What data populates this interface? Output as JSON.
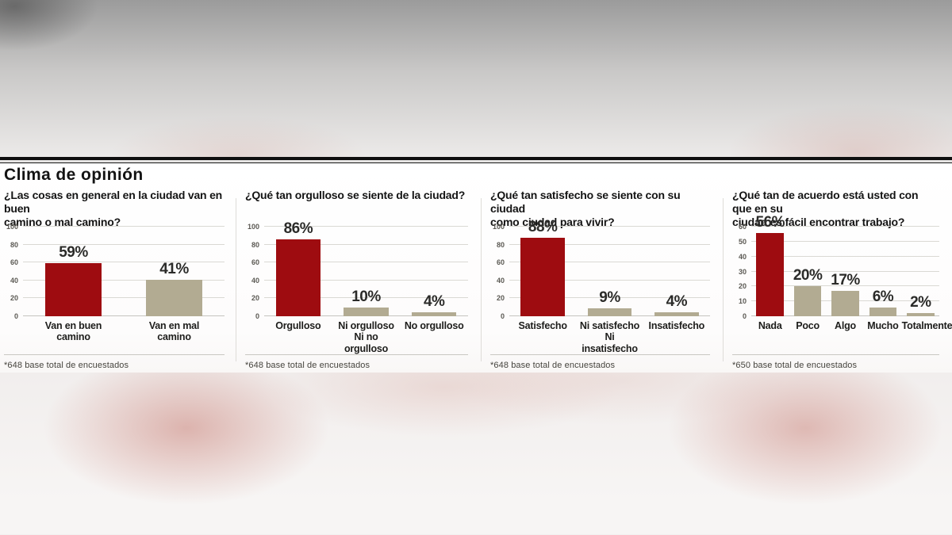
{
  "page": {
    "heading": "Clima de opinión"
  },
  "colors": {
    "accent_red": "#9e0c10",
    "neutral_tan": "#b2ab92",
    "rule_black": "#0f0f0f"
  },
  "chart_data": [
    {
      "type": "bar",
      "title": "¿Las cosas en general en la ciudad van en buen\ncamino o mal camino?",
      "categories": [
        "Van en buen\ncamino",
        "Van en mal\ncamino"
      ],
      "values": [
        59,
        41
      ],
      "value_labels": [
        "59%",
        "41%"
      ],
      "colors": [
        "#9e0c10",
        "#b2ab92"
      ],
      "ylim": [
        0,
        100
      ],
      "yticks": [
        0,
        20,
        40,
        60,
        80,
        100
      ],
      "grid": true,
      "legend": "none",
      "bar_width_pct": 56,
      "footnote": "*648 base total de encuestados"
    },
    {
      "type": "bar",
      "title": "¿Qué tan orgulloso se siente de la ciudad?",
      "categories": [
        "Orgulloso",
        "Ni orgulloso\nNi no orgulloso",
        "No orgulloso"
      ],
      "values": [
        86,
        10,
        4
      ],
      "value_labels": [
        "86%",
        "10%",
        "4%"
      ],
      "colors": [
        "#9e0c10",
        "#b2ab92",
        "#b2ab92"
      ],
      "ylim": [
        0,
        100
      ],
      "yticks": [
        0,
        20,
        40,
        60,
        80,
        100
      ],
      "grid": true,
      "legend": "none",
      "bar_width_pct": 66,
      "footnote": "*648 base total de encuestados"
    },
    {
      "type": "bar",
      "title": "¿Qué tan satisfecho se siente con su ciudad\ncomo ciudad para vivir?",
      "categories": [
        "Satisfecho",
        "Ni satisfecho\nNi insatisfecho",
        "Insatisfecho"
      ],
      "values": [
        88,
        9,
        4
      ],
      "value_labels": [
        "88%",
        "9%",
        "4%"
      ],
      "colors": [
        "#9e0c10",
        "#b2ab92",
        "#b2ab92"
      ],
      "ylim": [
        0,
        100
      ],
      "yticks": [
        0,
        20,
        40,
        60,
        80,
        100
      ],
      "grid": true,
      "legend": "none",
      "bar_width_pct": 66,
      "footnote": "*648 base total de encuestados"
    },
    {
      "type": "bar",
      "title": "¿Qué tan de acuerdo está usted con que en su\nciudad es fácil encontrar trabajo?",
      "categories": [
        "Nada",
        "Poco",
        "Algo",
        "Mucho",
        "Totalmente"
      ],
      "values": [
        56,
        20,
        17,
        6,
        2
      ],
      "value_labels": [
        "56%",
        "20%",
        "17%",
        "6%",
        "2%"
      ],
      "colors": [
        "#9e0c10",
        "#b2ab92",
        "#b2ab92",
        "#b2ab92",
        "#b2ab92"
      ],
      "ylim": [
        0,
        60
      ],
      "yticks": [
        0,
        10,
        20,
        30,
        40,
        50,
        60
      ],
      "grid": true,
      "legend": "none",
      "bar_width_pct": 73,
      "footnote": "*650 base total de encuestados"
    }
  ]
}
